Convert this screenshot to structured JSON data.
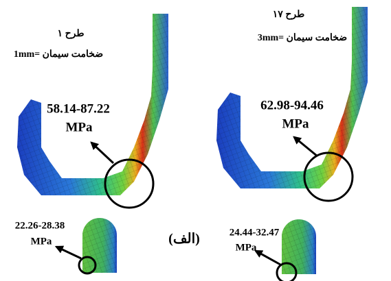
{
  "panels": [
    {
      "design": "طرح ۱",
      "thickness": "ضخامت سیمان =1mm",
      "main_stress": {
        "range": "58.14-87.22",
        "unit": "MPa"
      },
      "small_stress": {
        "range": "22.26-28.38",
        "unit": "MPa"
      }
    },
    {
      "design": "طرح ۱۷",
      "thickness": "ضخامت سیمان =3mm",
      "main_stress": {
        "range": "62.98-94.46",
        "unit": "MPa"
      },
      "small_stress": {
        "range": "24.44-32.47",
        "unit": "MPa"
      }
    }
  ],
  "figure_label": "(الف)"
}
